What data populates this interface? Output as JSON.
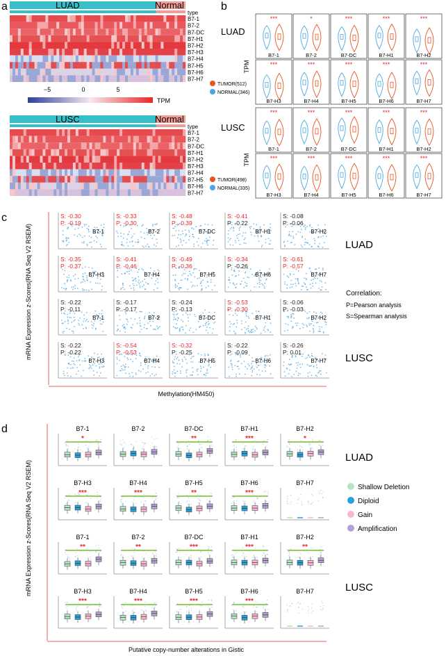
{
  "genes": [
    "B7-1",
    "B7-2",
    "B7-DC",
    "B7-H1",
    "B7-H2",
    "B7-H3",
    "B7-H4",
    "B7-H5",
    "B7-H6",
    "B7-H7"
  ],
  "colors": {
    "tumor": "#e8531e",
    "normal": "#4aa8e0",
    "heat_high": "#e8262a",
    "heat_mid": "#f3a3a6",
    "heat_low": "#2e3e99",
    "bar": "#36bfc9",
    "normal_bar": "#f29c95",
    "star": "#e8262a",
    "scatter": "#3f9fe0",
    "box_green": "#b7e3c2",
    "box_blue": "#2aa0dc",
    "box_pink": "#f5b8cf",
    "box_purple": "#b5a2d4",
    "sig_line": "#6ec020"
  },
  "panel_a": {
    "label": "a",
    "type_label": "type",
    "luad": {
      "title": "LUAD",
      "normal": "Normal"
    },
    "lusc": {
      "title": "LUSC",
      "normal": "Normal"
    },
    "colorbar": {
      "ticks": [
        "−5",
        "0",
        "5"
      ],
      "unit": "TPM"
    }
  },
  "panel_b": {
    "label": "b",
    "ylabel": "TPM",
    "luad": {
      "title": "LUAD",
      "tumor": "TUMOR(512)",
      "normal": "NORMAL(346)",
      "stars": [
        "***",
        "*",
        "***",
        "***",
        "***",
        "***",
        "***",
        "***",
        "***",
        "***"
      ]
    },
    "lusc": {
      "title": "LUSC",
      "tumor": "TUMOR(498)",
      "normal": "NORMAL(335)",
      "stars": [
        "***",
        "***",
        "***",
        "***",
        "***",
        "***",
        "***",
        "***",
        "***",
        "***"
      ]
    }
  },
  "panel_c": {
    "label": "c",
    "ylabel": "mRNA Expression z-Scores(RNA Seq V2 RSEM)",
    "xlabel": "Methylation(HM450)",
    "luad_title": "LUAD",
    "lusc_title": "LUSC",
    "legend_title": "Correlation:",
    "legend_p": "P=Pearson analysis",
    "legend_s": "S=Spearman analysis",
    "luad": [
      {
        "s": "S: -0.30",
        "p": "P: -0.19",
        "sig": true
      },
      {
        "s": "S: -0.33",
        "p": "P: -0.30",
        "sig": true
      },
      {
        "s": "S: -0.48",
        "p": "P: -0.39",
        "sig": true
      },
      {
        "s": "S: -0.41",
        "p": "P: -0.22",
        "sig": "s"
      },
      {
        "s": "S: -0.08",
        "p": "P: -0.06",
        "sig": false
      },
      {
        "s": "S: -0.35",
        "p": "P: -0.37",
        "sig": true
      },
      {
        "s": "S: -0.41",
        "p": "P: -0.46",
        "sig": true
      },
      {
        "s": "S: -0.49",
        "p": "P: -0.36",
        "sig": true
      },
      {
        "s": "S: -0.34",
        "p": "P: -0.26",
        "sig": "s"
      },
      {
        "s": "S: -0.61",
        "p": "P: -0.57",
        "sig": true
      }
    ],
    "lusc": [
      {
        "s": "S: -0.22",
        "p": "P: -0.11",
        "sig": false
      },
      {
        "s": "S: -0.17",
        "p": "P: -0.17",
        "sig": false
      },
      {
        "s": "S: -0.24",
        "p": "P: -0.13",
        "sig": false
      },
      {
        "s": "S: -0.53",
        "p": "P: -0.30",
        "sig": true
      },
      {
        "s": "S: -0.06",
        "p": "P: -0.03",
        "sig": false
      },
      {
        "s": "S: -0.22",
        "p": "P: -0.22",
        "sig": false
      },
      {
        "s": "S: -0.54",
        "p": "P: -0.53",
        "sig": true
      },
      {
        "s": "S: -0.32",
        "p": "P: -0.25",
        "sig": "s"
      },
      {
        "s": "S: -0.22",
        "p": "P: -0.09",
        "sig": false
      },
      {
        "s": "S: -0.26",
        "p": "P: 0.01",
        "sig": false
      }
    ]
  },
  "panel_d": {
    "label": "d",
    "ylabel": "mRNA Expression z-Scores(RNA Seq V2 RSEM)",
    "xlabel": "Putative copy-number alterations in Gistic",
    "luad_title": "LUAD",
    "lusc_title": "LUSC",
    "legend": [
      "Shallow Deletion",
      "Diploid",
      "Gain",
      "Amplification"
    ],
    "luad_stars": [
      "*",
      "",
      "**",
      "***",
      "*",
      "***",
      "***",
      "**",
      "***",
      ""
    ],
    "lusc_stars": [
      "**",
      "**",
      "***",
      "***",
      "**",
      "***",
      "***",
      "***",
      "***",
      ""
    ]
  }
}
